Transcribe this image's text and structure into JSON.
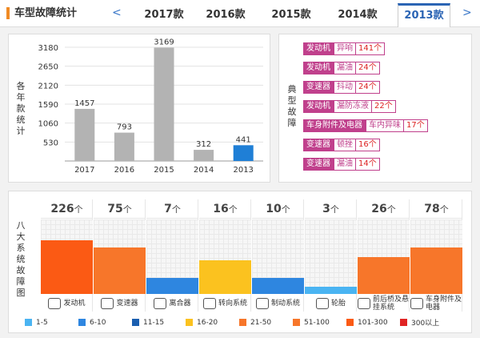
{
  "header": {
    "title": "车型故障统计",
    "prev": "<",
    "next": ">",
    "tabs": [
      {
        "label": "2017款",
        "active": false
      },
      {
        "label": "2016款",
        "active": false
      },
      {
        "label": "2015款",
        "active": false
      },
      {
        "label": "2014款",
        "active": false
      },
      {
        "label": "2013款",
        "active": true
      }
    ]
  },
  "bar_panel": {
    "side_label": "各年款统计"
  },
  "chart_data": {
    "type": "bar",
    "categories": [
      "2017",
      "2016",
      "2015",
      "2014",
      "2013"
    ],
    "values": [
      1457,
      793,
      3169,
      312,
      441
    ],
    "highlight_index": 4,
    "yticks": [
      530,
      1060,
      1590,
      2120,
      2650,
      3180
    ],
    "ylim": [
      0,
      3180
    ],
    "colors": {
      "bar": "#b3b3b3",
      "highlight": "#1f7fd6"
    },
    "grid": true
  },
  "typical": {
    "side_label": "典型故障",
    "faults": [
      {
        "part": "发动机",
        "desc": "异响",
        "count": "141个"
      },
      {
        "part": "发动机",
        "desc": "漏油",
        "count": "24个"
      },
      {
        "part": "变速器",
        "desc": "抖动",
        "count": "24个"
      },
      {
        "part": "发动机",
        "desc": "漏防冻液",
        "count": "22个"
      },
      {
        "part": "车身附件及电器",
        "desc": "车内异味",
        "count": "17个"
      },
      {
        "part": "变速器",
        "desc": "顿挫",
        "count": "16个"
      },
      {
        "part": "变速器",
        "desc": "漏油",
        "count": "14个"
      }
    ]
  },
  "eight": {
    "side_label": "八大系统故障图",
    "unit": "个",
    "systems": [
      {
        "count": "226",
        "label": "发动机",
        "icon": "engine-icon",
        "level": 0.72,
        "color": "#fb5a14"
      },
      {
        "count": "75",
        "label": "变速器",
        "icon": "gearbox-icon",
        "level": 0.62,
        "color": "#f7762a"
      },
      {
        "count": "7",
        "label": "离合器",
        "icon": "clutch-icon",
        "level": 0.22,
        "color": "#2e86e0"
      },
      {
        "count": "16",
        "label": "转向系统",
        "icon": "steering-icon",
        "level": 0.45,
        "color": "#fbc21f"
      },
      {
        "count": "10",
        "label": "制动系统",
        "icon": "brake-icon",
        "level": 0.22,
        "color": "#2e86e0"
      },
      {
        "count": "3",
        "label": "轮胎",
        "icon": "tire-icon",
        "level": 0.1,
        "color": "#4ab4f2"
      },
      {
        "count": "26",
        "label": "前后桥及悬挂系统",
        "icon": "suspension-icon",
        "level": 0.5,
        "color": "#f7762a"
      },
      {
        "count": "78",
        "label": "车身附件及电器",
        "icon": "body-electrical-icon",
        "level": 0.62,
        "color": "#f7762a"
      }
    ],
    "legend": [
      {
        "label": "1-5",
        "color": "#4ab4f2"
      },
      {
        "label": "6-10",
        "color": "#2e86e0"
      },
      {
        "label": "11-15",
        "color": "#1a5fb0"
      },
      {
        "label": "16-20",
        "color": "#fbc21f"
      },
      {
        "label": "21-50",
        "color": "#f7762a"
      },
      {
        "label": "51-100",
        "color": "#f7762a"
      },
      {
        "label": "101-300",
        "color": "#fb5a14"
      },
      {
        "label": "300以上",
        "color": "#e02424"
      }
    ]
  }
}
